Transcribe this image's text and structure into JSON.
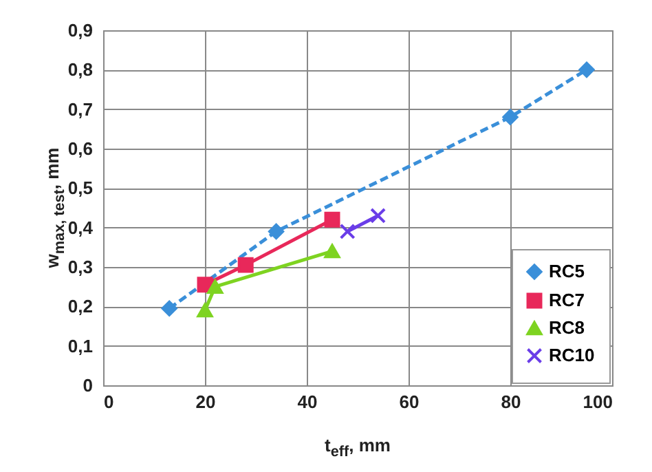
{
  "chart_data": {
    "type": "line",
    "xlabel": "t$_{eff}$, mm",
    "ylabel": "w$_{max, test}$, mm",
    "xlim": [
      0,
      100
    ],
    "xticks": [
      0,
      20,
      40,
      60,
      80,
      100
    ],
    "ylim": [
      0,
      0.9
    ],
    "yticks": [
      0,
      {
        "value": 0.1,
        "label": "0,1"
      },
      {
        "value": 0.2,
        "label": "0,2"
      },
      {
        "value": 0.3,
        "label": "0,3"
      },
      {
        "value": 0.4,
        "label": "0,4"
      },
      {
        "value": 0.5,
        "label": "0,5"
      },
      {
        "value": 0.6,
        "label": "0,6"
      },
      {
        "value": 0.7,
        "label": "0,7"
      },
      {
        "value": 0.8,
        "label": "0,8"
      },
      {
        "value": 0.9,
        "label": "0,9"
      }
    ],
    "grid": true,
    "legend": "bottom right",
    "series": [
      {
        "name": "RC5",
        "color": "#3a8fd9",
        "marker": "diamond",
        "line_style": "dashed",
        "x": [
          13,
          34,
          80,
          95
        ],
        "values": [
          0.195,
          0.39,
          0.68,
          0.8
        ]
      },
      {
        "name": "RC7",
        "color": "#e8285a",
        "marker": "square",
        "line_style": "solid",
        "x": [
          20,
          28,
          45
        ],
        "values": [
          0.255,
          0.305,
          0.42
        ]
      },
      {
        "name": "RC8",
        "color": "#7ed321",
        "marker": "triangle",
        "line_style": "solid",
        "x": [
          20,
          22,
          45
        ],
        "values": [
          0.19,
          0.25,
          0.34
        ]
      },
      {
        "name": "RC10",
        "color": "#6a3de8",
        "marker": "cross",
        "line_style": "solid",
        "x": [
          48,
          54
        ],
        "values": [
          0.39,
          0.43
        ]
      }
    ]
  }
}
